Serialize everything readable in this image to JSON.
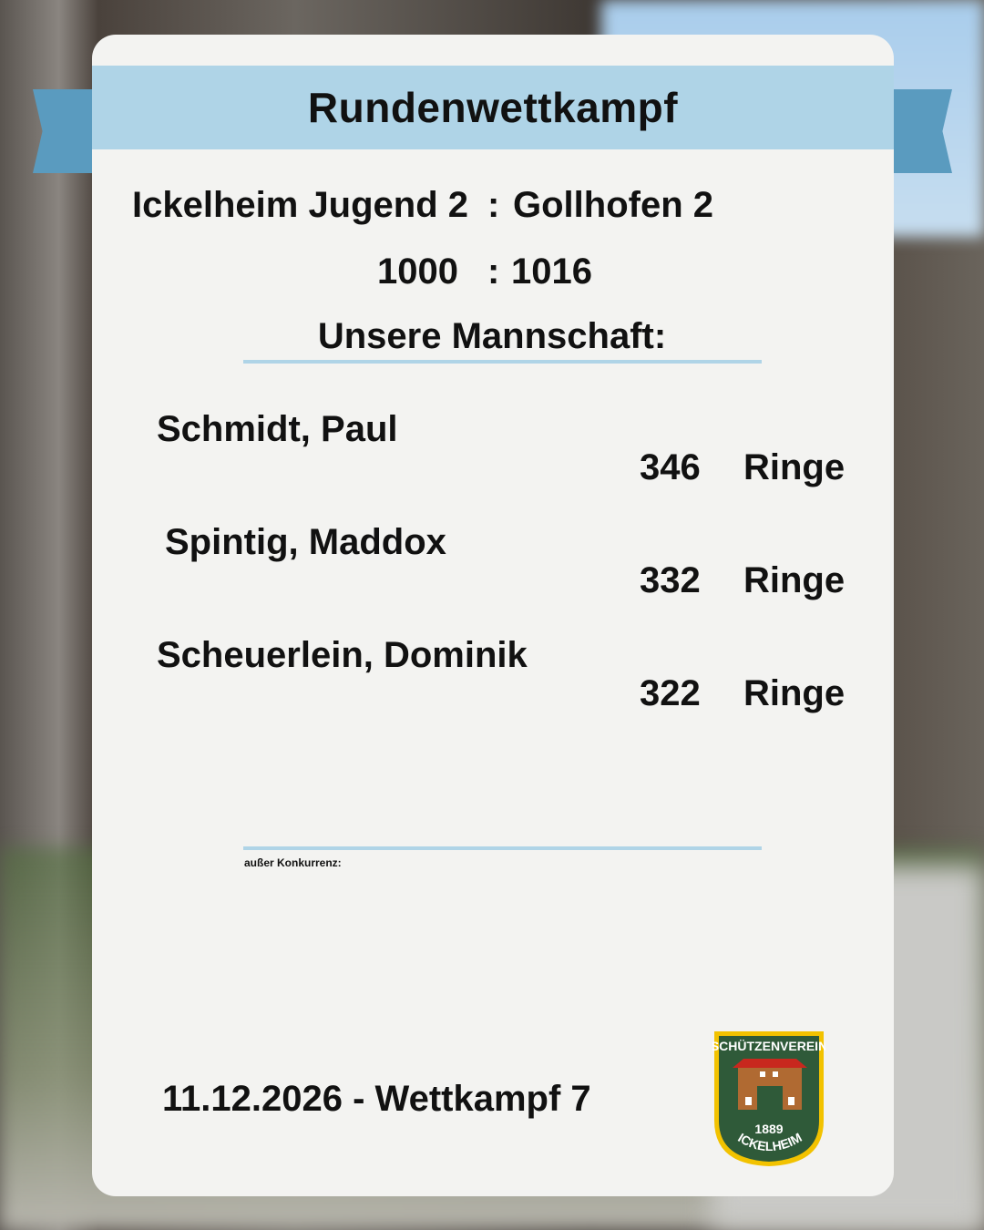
{
  "title": "Rundenwettkampf",
  "match": {
    "home": "Ickelheim Jugend 2",
    "separator": ":",
    "away": "Gollhofen 2",
    "home_score": "1000",
    "away_score": "1016"
  },
  "team_heading": "Unsere Mannschaft:",
  "players": [
    {
      "name": "Schmidt, Paul",
      "score": "346",
      "unit": "Ringe"
    },
    {
      "name": "Spintig, Maddox",
      "score": "332",
      "unit": "Ringe"
    },
    {
      "name": "Scheuerlein, Dominik",
      "score": "322",
      "unit": "Ringe"
    }
  ],
  "out_of_competition": "außer Konkurrenz:",
  "footer": "11.12.2026 - Wettkampf 7",
  "logo": {
    "top": "SCHÜTZENVEREIN",
    "year": "1889",
    "bottom": "ICKELHEIM"
  },
  "colors": {
    "banner": "#afd4e7",
    "ribbon": "#5a9bbf",
    "card": "#f3f3f1",
    "logo_green": "#2f5a39",
    "logo_gold": "#f2c200"
  }
}
